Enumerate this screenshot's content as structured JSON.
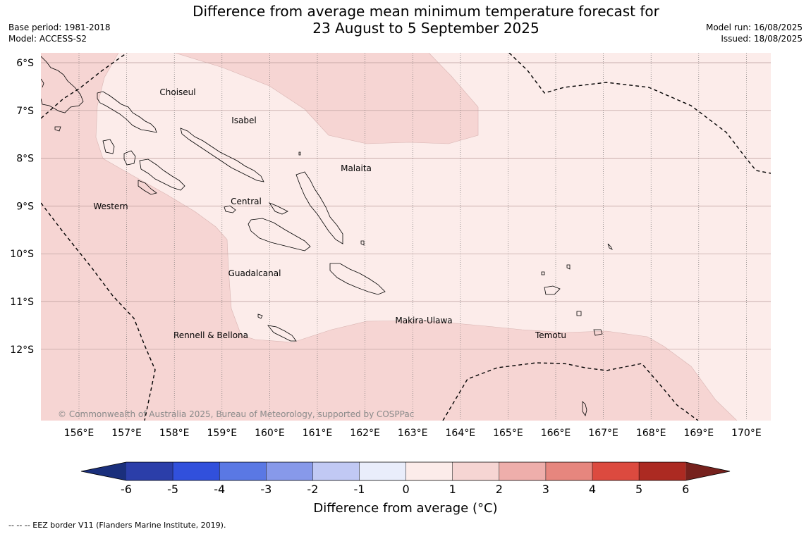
{
  "title_line1": "Difference from average mean minimum temperature forecast for",
  "title_line2": "23 August to 5 September 2025",
  "meta_left": [
    "Base period: 1981-2018",
    "Model: ACCESS-S2"
  ],
  "meta_right": [
    "Model run: 16/08/2025",
    "Issued: 18/08/2025"
  ],
  "copyright": "© Commonwealth of Australia 2025, Bureau of Meteorology, supported by COSPPac",
  "lat_labels": [
    "6°S",
    "7°S",
    "8°S",
    "9°S",
    "10°S",
    "11°S",
    "12°S"
  ],
  "lon_labels": [
    "156°E",
    "157°E",
    "158°E",
    "159°E",
    "160°E",
    "161°E",
    "162°E",
    "163°E",
    "164°E",
    "165°E",
    "166°E",
    "167°E",
    "168°E",
    "169°E",
    "170°E"
  ],
  "regions": [
    "Choiseul",
    "Isabel",
    "Malaita",
    "Central",
    "Western",
    "Guadalcanal",
    "Makira-Ulawa",
    "Temotu",
    "Rennell & Bellona"
  ],
  "colorbar": {
    "label": "Difference from average (°C)",
    "ticks": [
      "-6",
      "-5",
      "-4",
      "-3",
      "-2",
      "-1",
      "0",
      "1",
      "2",
      "3",
      "4",
      "5",
      "6"
    ],
    "colors": [
      "#2b3ea9",
      "#3150dc",
      "#5a78e4",
      "#8799ea",
      "#c1c9f4",
      "#e9edfb",
      "#fcecea",
      "#f6d5d3",
      "#eeaeab",
      "#e6867e",
      "#dc4a3f",
      "#ac2a22"
    ],
    "under_color": "#1a2f7c",
    "over_color": "#76211d"
  },
  "footer_note": "--  --  -- EEZ border V11 (Flanders Marine Institute, 2019).",
  "map_colors": {
    "anomaly_0_1": "#fcecea",
    "anomaly_1_2": "#f6d5d3"
  }
}
